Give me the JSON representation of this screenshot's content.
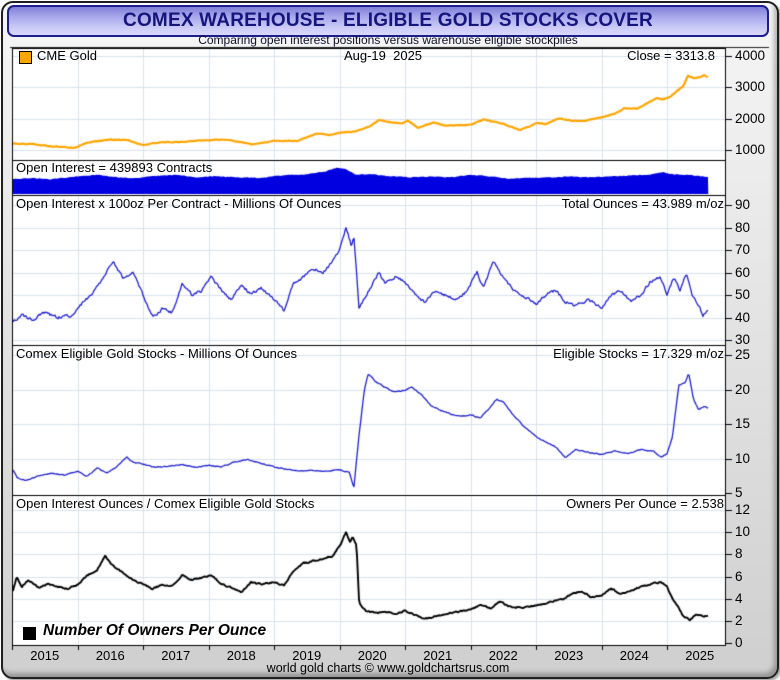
{
  "window": {
    "title": "COMEX WAREHOUSE - ELIGIBLE GOLD STOCKS COVER",
    "subtitle": "Comparing open interest positions versus warehouse eligible stockpiles",
    "footer": "world gold charts © www.goldchartsrus.com"
  },
  "colors": {
    "gold_line": "#FFA500",
    "blue_fill": "#0000E0",
    "blue_line": "#2020CC",
    "black_line": "#000000",
    "grid": "#d9e2f0",
    "panel_bg": "#ffffff",
    "panel_border": "#000000",
    "title_text": "#15157d",
    "titlebar_border": "#1d1d8c"
  },
  "x_axis": {
    "years": [
      2015,
      2016,
      2017,
      2018,
      2019,
      2020,
      2021,
      2022,
      2023,
      2024,
      2025
    ],
    "start": 2015.0,
    "end": 2025.63
  },
  "chart_data": [
    {
      "id": "gold-price",
      "type": "line",
      "legend": "CME Gold",
      "date_label": "Aug-19  2025",
      "value_label": "Close = 3313.8",
      "close": 3313.8,
      "yticks": [
        1000,
        2000,
        3000,
        4000
      ],
      "noise": 18,
      "points": [
        [
          2015.0,
          1210
        ],
        [
          2015.3,
          1190
        ],
        [
          2015.6,
          1120
        ],
        [
          2015.95,
          1065
        ],
        [
          2016.15,
          1240
        ],
        [
          2016.5,
          1330
        ],
        [
          2016.75,
          1320
        ],
        [
          2017.0,
          1160
        ],
        [
          2017.3,
          1255
        ],
        [
          2017.6,
          1250
        ],
        [
          2017.75,
          1290
        ],
        [
          2018.0,
          1320
        ],
        [
          2018.3,
          1330
        ],
        [
          2018.65,
          1185
        ],
        [
          2018.85,
          1230
        ],
        [
          2019.0,
          1290
        ],
        [
          2019.35,
          1285
        ],
        [
          2019.65,
          1520
        ],
        [
          2019.85,
          1480
        ],
        [
          2020.0,
          1560
        ],
        [
          2020.2,
          1580
        ],
        [
          2020.45,
          1740
        ],
        [
          2020.6,
          1960
        ],
        [
          2020.75,
          1900
        ],
        [
          2020.95,
          1840
        ],
        [
          2021.05,
          1935
        ],
        [
          2021.2,
          1705
        ],
        [
          2021.45,
          1890
        ],
        [
          2021.6,
          1770
        ],
        [
          2021.8,
          1790
        ],
        [
          2022.0,
          1810
        ],
        [
          2022.2,
          1970
        ],
        [
          2022.5,
          1830
        ],
        [
          2022.75,
          1640
        ],
        [
          2022.9,
          1750
        ],
        [
          2023.0,
          1860
        ],
        [
          2023.15,
          1830
        ],
        [
          2023.35,
          2010
        ],
        [
          2023.55,
          1935
        ],
        [
          2023.75,
          1925
        ],
        [
          2023.85,
          1990
        ],
        [
          2024.0,
          2040
        ],
        [
          2024.2,
          2160
        ],
        [
          2024.35,
          2330
        ],
        [
          2024.55,
          2320
        ],
        [
          2024.7,
          2500
        ],
        [
          2024.85,
          2650
        ],
        [
          2024.95,
          2620
        ],
        [
          2025.05,
          2700
        ],
        [
          2025.15,
          2880
        ],
        [
          2025.25,
          3050
        ],
        [
          2025.32,
          3380
        ],
        [
          2025.42,
          3280
        ],
        [
          2025.5,
          3330
        ],
        [
          2025.57,
          3390
        ],
        [
          2025.63,
          3313.8
        ]
      ]
    },
    {
      "id": "open-interest",
      "type": "area",
      "label": "Open Interest = 439893 Contracts",
      "contracts": 439893,
      "unit": "fill fraction of strip height (no axis shown)",
      "noise": 0.02,
      "points": [
        [
          2015.0,
          0.46
        ],
        [
          2015.3,
          0.5
        ],
        [
          2015.6,
          0.46
        ],
        [
          2016.0,
          0.55
        ],
        [
          2016.3,
          0.6
        ],
        [
          2016.6,
          0.52
        ],
        [
          2016.9,
          0.5
        ],
        [
          2017.2,
          0.56
        ],
        [
          2017.5,
          0.6
        ],
        [
          2017.8,
          0.52
        ],
        [
          2018.1,
          0.56
        ],
        [
          2018.4,
          0.52
        ],
        [
          2018.8,
          0.5
        ],
        [
          2019.1,
          0.58
        ],
        [
          2019.5,
          0.62
        ],
        [
          2019.8,
          0.72
        ],
        [
          2019.95,
          0.82
        ],
        [
          2020.1,
          0.78
        ],
        [
          2020.25,
          0.6
        ],
        [
          2020.5,
          0.62
        ],
        [
          2020.8,
          0.55
        ],
        [
          2021.1,
          0.52
        ],
        [
          2021.4,
          0.55
        ],
        [
          2021.7,
          0.52
        ],
        [
          2022.0,
          0.6
        ],
        [
          2022.3,
          0.55
        ],
        [
          2022.6,
          0.48
        ],
        [
          2022.9,
          0.5
        ],
        [
          2023.2,
          0.52
        ],
        [
          2023.5,
          0.55
        ],
        [
          2023.8,
          0.52
        ],
        [
          2024.1,
          0.55
        ],
        [
          2024.4,
          0.58
        ],
        [
          2024.7,
          0.6
        ],
        [
          2024.95,
          0.68
        ],
        [
          2025.1,
          0.62
        ],
        [
          2025.3,
          0.6
        ],
        [
          2025.5,
          0.56
        ],
        [
          2025.63,
          0.52
        ]
      ]
    },
    {
      "id": "total-ounces",
      "type": "line",
      "label": "Open Interest x 100oz Per Contract - Millions Of Ounces",
      "value_label": "Total Ounces = 43.989 m/oz",
      "total_m_oz": 43.989,
      "yticks": [
        30,
        40,
        50,
        60,
        70,
        80,
        90
      ],
      "noise": 1.1,
      "points": [
        [
          2015.0,
          38
        ],
        [
          2015.15,
          41
        ],
        [
          2015.3,
          39
        ],
        [
          2015.5,
          42
        ],
        [
          2015.7,
          40
        ],
        [
          2015.9,
          41
        ],
        [
          2016.0,
          44
        ],
        [
          2016.2,
          50
        ],
        [
          2016.4,
          58
        ],
        [
          2016.55,
          65
        ],
        [
          2016.7,
          57
        ],
        [
          2016.85,
          60
        ],
        [
          2017.0,
          50
        ],
        [
          2017.15,
          40
        ],
        [
          2017.3,
          44
        ],
        [
          2017.45,
          42
        ],
        [
          2017.6,
          55
        ],
        [
          2017.75,
          50
        ],
        [
          2017.9,
          52
        ],
        [
          2018.05,
          58
        ],
        [
          2018.2,
          52
        ],
        [
          2018.35,
          48
        ],
        [
          2018.5,
          55
        ],
        [
          2018.65,
          50
        ],
        [
          2018.8,
          53
        ],
        [
          2019.0,
          48
        ],
        [
          2019.15,
          43
        ],
        [
          2019.3,
          55
        ],
        [
          2019.45,
          58
        ],
        [
          2019.6,
          62
        ],
        [
          2019.75,
          60
        ],
        [
          2019.9,
          65
        ],
        [
          2020.0,
          70
        ],
        [
          2020.1,
          80
        ],
        [
          2020.18,
          72
        ],
        [
          2020.22,
          76
        ],
        [
          2020.3,
          44
        ],
        [
          2020.45,
          52
        ],
        [
          2020.6,
          60
        ],
        [
          2020.7,
          55
        ],
        [
          2020.85,
          58
        ],
        [
          2021.0,
          56
        ],
        [
          2021.15,
          50
        ],
        [
          2021.3,
          47
        ],
        [
          2021.45,
          52
        ],
        [
          2021.6,
          50
        ],
        [
          2021.8,
          48
        ],
        [
          2021.95,
          52
        ],
        [
          2022.1,
          60
        ],
        [
          2022.2,
          53
        ],
        [
          2022.35,
          65
        ],
        [
          2022.5,
          58
        ],
        [
          2022.65,
          52
        ],
        [
          2022.8,
          50
        ],
        [
          2023.0,
          46
        ],
        [
          2023.15,
          50
        ],
        [
          2023.3,
          52
        ],
        [
          2023.45,
          47
        ],
        [
          2023.6,
          45
        ],
        [
          2023.8,
          48
        ],
        [
          2024.0,
          44
        ],
        [
          2024.15,
          50
        ],
        [
          2024.3,
          52
        ],
        [
          2024.45,
          47
        ],
        [
          2024.6,
          50
        ],
        [
          2024.75,
          56
        ],
        [
          2024.9,
          58
        ],
        [
          2025.0,
          50
        ],
        [
          2025.1,
          58
        ],
        [
          2025.2,
          52
        ],
        [
          2025.3,
          60
        ],
        [
          2025.38,
          50
        ],
        [
          2025.45,
          47
        ],
        [
          2025.55,
          41
        ],
        [
          2025.63,
          43.989
        ]
      ]
    },
    {
      "id": "eligible-stocks",
      "type": "line",
      "label": "Comex Eligible Gold Stocks - Millions Of Ounces",
      "value_label": "Eligible Stocks = 17.329 m/oz",
      "eligible_m_oz": 17.329,
      "yticks": [
        5,
        10,
        15,
        20,
        25
      ],
      "noise": 0.13,
      "points": [
        [
          2015.0,
          8.6
        ],
        [
          2015.08,
          7.2
        ],
        [
          2015.2,
          6.8
        ],
        [
          2015.4,
          7.4
        ],
        [
          2015.6,
          7.9
        ],
        [
          2015.8,
          7.6
        ],
        [
          2016.0,
          8.2
        ],
        [
          2016.15,
          7.4
        ],
        [
          2016.3,
          8.6
        ],
        [
          2016.45,
          8.0
        ],
        [
          2016.6,
          8.8
        ],
        [
          2016.75,
          10.2
        ],
        [
          2016.85,
          9.4
        ],
        [
          2017.0,
          9.2
        ],
        [
          2017.2,
          8.7
        ],
        [
          2017.4,
          8.9
        ],
        [
          2017.6,
          9.1
        ],
        [
          2017.8,
          8.7
        ],
        [
          2018.0,
          9.0
        ],
        [
          2018.2,
          8.8
        ],
        [
          2018.4,
          9.5
        ],
        [
          2018.6,
          9.9
        ],
        [
          2018.8,
          9.3
        ],
        [
          2019.0,
          8.8
        ],
        [
          2019.2,
          8.4
        ],
        [
          2019.4,
          8.2
        ],
        [
          2019.6,
          8.3
        ],
        [
          2019.8,
          8.1
        ],
        [
          2020.0,
          8.4
        ],
        [
          2020.15,
          8.0
        ],
        [
          2020.22,
          5.8
        ],
        [
          2020.3,
          13.5
        ],
        [
          2020.38,
          20.0
        ],
        [
          2020.44,
          22.3
        ],
        [
          2020.55,
          21.2
        ],
        [
          2020.7,
          20.3
        ],
        [
          2020.85,
          19.6
        ],
        [
          2021.0,
          19.9
        ],
        [
          2021.1,
          20.4
        ],
        [
          2021.25,
          19.3
        ],
        [
          2021.4,
          17.6
        ],
        [
          2021.55,
          17.0
        ],
        [
          2021.7,
          16.4
        ],
        [
          2021.85,
          16.1
        ],
        [
          2022.0,
          16.3
        ],
        [
          2022.15,
          15.9
        ],
        [
          2022.3,
          17.4
        ],
        [
          2022.4,
          18.6
        ],
        [
          2022.5,
          18.2
        ],
        [
          2022.65,
          16.3
        ],
        [
          2022.8,
          14.8
        ],
        [
          2023.0,
          13.2
        ],
        [
          2023.15,
          12.4
        ],
        [
          2023.3,
          11.7
        ],
        [
          2023.45,
          10.1
        ],
        [
          2023.6,
          11.3
        ],
        [
          2023.8,
          10.9
        ],
        [
          2024.0,
          10.6
        ],
        [
          2024.2,
          11.1
        ],
        [
          2024.4,
          10.7
        ],
        [
          2024.6,
          11.3
        ],
        [
          2024.8,
          11.0
        ],
        [
          2024.92,
          10.2
        ],
        [
          2025.0,
          10.6
        ],
        [
          2025.08,
          13.0
        ],
        [
          2025.18,
          20.6
        ],
        [
          2025.28,
          21.0
        ],
        [
          2025.33,
          22.3
        ],
        [
          2025.4,
          18.8
        ],
        [
          2025.48,
          17.1
        ],
        [
          2025.56,
          17.5
        ],
        [
          2025.63,
          17.329
        ]
      ]
    },
    {
      "id": "owners-per-ounce",
      "type": "line",
      "label": "Open Interest Ounces / Comex Eligible Gold Stocks",
      "value_label": "Owners Per Ounce = 2.538",
      "legend": "Number Of Owners Per Ounce",
      "owners_per_ounce": 2.538,
      "yticks": [
        0,
        2,
        4,
        6,
        8,
        10,
        12
      ],
      "noise": 0.12,
      "points": [
        [
          2015.0,
          4.4
        ],
        [
          2015.07,
          5.9
        ],
        [
          2015.15,
          5.1
        ],
        [
          2015.25,
          5.7
        ],
        [
          2015.4,
          5.0
        ],
        [
          2015.55,
          5.3
        ],
        [
          2015.7,
          5.1
        ],
        [
          2015.85,
          4.9
        ],
        [
          2016.0,
          5.3
        ],
        [
          2016.15,
          6.1
        ],
        [
          2016.3,
          6.6
        ],
        [
          2016.42,
          7.8
        ],
        [
          2016.55,
          6.9
        ],
        [
          2016.7,
          6.3
        ],
        [
          2016.85,
          5.7
        ],
        [
          2017.0,
          5.3
        ],
        [
          2017.15,
          4.9
        ],
        [
          2017.3,
          5.3
        ],
        [
          2017.45,
          5.1
        ],
        [
          2017.6,
          6.1
        ],
        [
          2017.75,
          5.7
        ],
        [
          2017.9,
          5.9
        ],
        [
          2018.05,
          6.1
        ],
        [
          2018.2,
          5.3
        ],
        [
          2018.35,
          5.0
        ],
        [
          2018.5,
          4.6
        ],
        [
          2018.65,
          5.5
        ],
        [
          2018.8,
          5.3
        ],
        [
          2019.0,
          5.5
        ],
        [
          2019.15,
          5.2
        ],
        [
          2019.3,
          6.5
        ],
        [
          2019.45,
          7.2
        ],
        [
          2019.6,
          7.4
        ],
        [
          2019.75,
          7.6
        ],
        [
          2019.9,
          7.9
        ],
        [
          2020.0,
          8.7
        ],
        [
          2020.1,
          10.0
        ],
        [
          2020.16,
          9.1
        ],
        [
          2020.2,
          9.6
        ],
        [
          2020.26,
          8.8
        ],
        [
          2020.3,
          3.6
        ],
        [
          2020.4,
          2.9
        ],
        [
          2020.55,
          2.7
        ],
        [
          2020.7,
          2.8
        ],
        [
          2020.85,
          2.7
        ],
        [
          2021.0,
          2.9
        ],
        [
          2021.15,
          2.5
        ],
        [
          2021.3,
          2.2
        ],
        [
          2021.45,
          2.4
        ],
        [
          2021.6,
          2.6
        ],
        [
          2021.8,
          2.8
        ],
        [
          2022.0,
          3.0
        ],
        [
          2022.15,
          3.4
        ],
        [
          2022.3,
          3.1
        ],
        [
          2022.45,
          3.7
        ],
        [
          2022.6,
          3.3
        ],
        [
          2022.8,
          3.2
        ],
        [
          2023.0,
          3.4
        ],
        [
          2023.2,
          3.7
        ],
        [
          2023.4,
          3.9
        ],
        [
          2023.55,
          4.4
        ],
        [
          2023.7,
          4.7
        ],
        [
          2023.85,
          4.1
        ],
        [
          2024.0,
          4.3
        ],
        [
          2024.15,
          4.9
        ],
        [
          2024.3,
          4.4
        ],
        [
          2024.45,
          4.7
        ],
        [
          2024.6,
          5.1
        ],
        [
          2024.75,
          5.3
        ],
        [
          2024.9,
          5.5
        ],
        [
          2025.0,
          5.2
        ],
        [
          2025.07,
          4.1
        ],
        [
          2025.15,
          3.4
        ],
        [
          2025.25,
          2.4
        ],
        [
          2025.35,
          2.1
        ],
        [
          2025.45,
          2.6
        ],
        [
          2025.55,
          2.4
        ],
        [
          2025.63,
          2.538
        ]
      ]
    }
  ]
}
